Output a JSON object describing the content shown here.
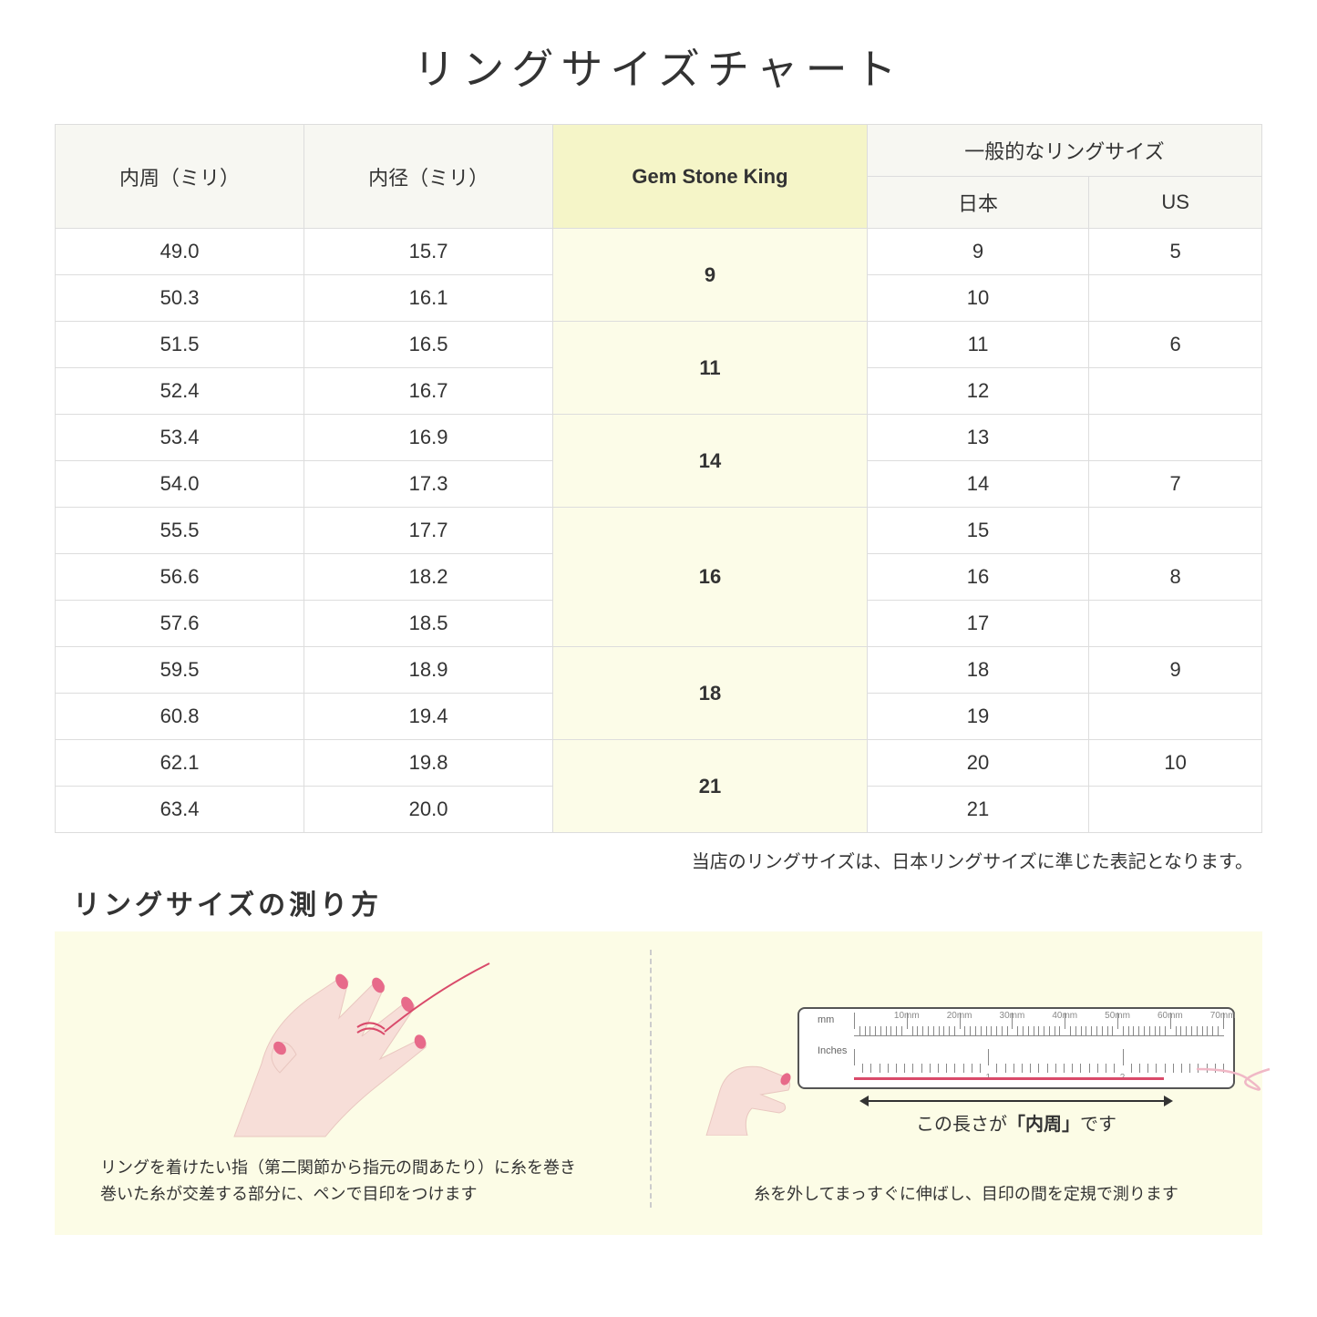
{
  "title": "リングサイズチャート",
  "table": {
    "headers": {
      "circ": "内周（ミリ）",
      "dia": "内径（ミリ）",
      "gsk": "Gem Stone King",
      "general": "一般的なリングサイズ",
      "jp": "日本",
      "us": "US"
    },
    "groups": [
      {
        "gsk": "9",
        "rows": [
          {
            "circ": "49.0",
            "dia": "15.7",
            "jp": "9",
            "us": "5"
          },
          {
            "circ": "50.3",
            "dia": "16.1",
            "jp": "10",
            "us": ""
          }
        ]
      },
      {
        "gsk": "11",
        "rows": [
          {
            "circ": "51.5",
            "dia": "16.5",
            "jp": "11",
            "us": "6"
          },
          {
            "circ": "52.4",
            "dia": "16.7",
            "jp": "12",
            "us": ""
          }
        ]
      },
      {
        "gsk": "14",
        "rows": [
          {
            "circ": "53.4",
            "dia": "16.9",
            "jp": "13",
            "us": ""
          },
          {
            "circ": "54.0",
            "dia": "17.3",
            "jp": "14",
            "us": "7"
          }
        ]
      },
      {
        "gsk": "16",
        "rows": [
          {
            "circ": "55.5",
            "dia": "17.7",
            "jp": "15",
            "us": ""
          },
          {
            "circ": "56.6",
            "dia": "18.2",
            "jp": "16",
            "us": "8"
          },
          {
            "circ": "57.6",
            "dia": "18.5",
            "jp": "17",
            "us": ""
          }
        ]
      },
      {
        "gsk": "18",
        "rows": [
          {
            "circ": "59.5",
            "dia": "18.9",
            "jp": "18",
            "us": "9"
          },
          {
            "circ": "60.8",
            "dia": "19.4",
            "jp": "19",
            "us": ""
          }
        ]
      },
      {
        "gsk": "21",
        "rows": [
          {
            "circ": "62.1",
            "dia": "19.8",
            "jp": "20",
            "us": "10"
          },
          {
            "circ": "63.4",
            "dia": "20.0",
            "jp": "21",
            "us": ""
          }
        ]
      }
    ]
  },
  "note": "当店のリングサイズは、日本リングサイズに準じた表記となります。",
  "measure": {
    "title": "リングサイズの測り方",
    "left_text_1": "リングを着けたい指（第二関節から指元の間あたり）に糸を巻き",
    "left_text_2": "巻いた糸が交差する部分に、ペンで目印をつけます",
    "right_label_prefix": "この長さが",
    "right_label_emph": "「内周」",
    "right_label_suffix": "です",
    "right_text": "糸を外してまっすぐに伸ばし、目印の間を定規で測ります",
    "ruler_mm_label": "mm",
    "ruler_in_label": "Inches",
    "ruler_mm_ticks": [
      "10mm",
      "20mm",
      "30mm",
      "40mm",
      "50mm",
      "60mm",
      "70mm"
    ],
    "ruler_in_ticks": [
      "1",
      "2"
    ]
  },
  "colors": {
    "header_bg": "#f7f7f2",
    "gsk_header_bg": "#f5f5c8",
    "gsk_cell_bg": "#fcfce8",
    "measure_bg": "#fcfce6",
    "hand_fill": "#f7ded8",
    "nail_fill": "#e76a8a",
    "thread": "#d94a6a",
    "border": "#dddddd"
  }
}
